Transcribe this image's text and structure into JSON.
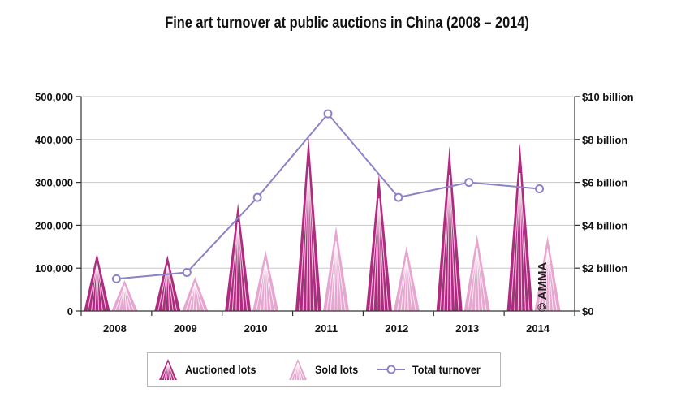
{
  "chart_data": {
    "type": "bar",
    "title": "Fine art turnover at public auctions in China (2008 – 2014)",
    "categories": [
      "2008",
      "2009",
      "2010",
      "2011",
      "2012",
      "2013",
      "2014"
    ],
    "series": [
      {
        "name": "Auctioned lots",
        "axis": "left",
        "kind": "bar",
        "color": "#b02a7f",
        "values": [
          135000,
          130000,
          252000,
          410000,
          320000,
          385000,
          392000
        ]
      },
      {
        "name": "Sold lots",
        "axis": "left",
        "kind": "bar",
        "color": "#e6a6cf",
        "values": [
          72000,
          80000,
          142000,
          198000,
          152000,
          178000,
          175000
        ]
      },
      {
        "name": "Total turnover",
        "axis": "right",
        "kind": "line",
        "color": "#8c82c6",
        "values": [
          1.5,
          1.8,
          5.3,
          9.2,
          5.3,
          6.0,
          5.7
        ]
      }
    ],
    "yaxis_left": {
      "ylim": [
        0,
        500000
      ],
      "ticks": [
        0,
        100000,
        200000,
        300000,
        400000,
        500000
      ],
      "tick_labels": [
        "0",
        "100,000",
        "200,000",
        "300,000",
        "400,000",
        "500,000"
      ]
    },
    "yaxis_right": {
      "ylim": [
        0,
        10
      ],
      "ticks": [
        0,
        2,
        4,
        6,
        8,
        10
      ],
      "tick_labels": [
        "$0",
        "$2 billion",
        "$4 billion",
        "$6 billion",
        "$8 billion",
        "$10 billion"
      ]
    },
    "grid": true,
    "legend": {
      "placement": "bottom-center",
      "entries": [
        "Auctioned lots",
        "Sold lots",
        "Total turnover"
      ]
    },
    "annotations": [
      "© AMMA"
    ]
  },
  "colors": {
    "auctioned": "#b02a7f",
    "sold": "#e6a6cf",
    "turnover": "#8c82c6",
    "grid": "#c8c8c8",
    "axis": "#333333"
  },
  "icons": {
    "auctioned_legend": "pyramid-icon-dark",
    "sold_legend": "pyramid-icon-light",
    "turnover_legend": "line-marker-icon"
  }
}
